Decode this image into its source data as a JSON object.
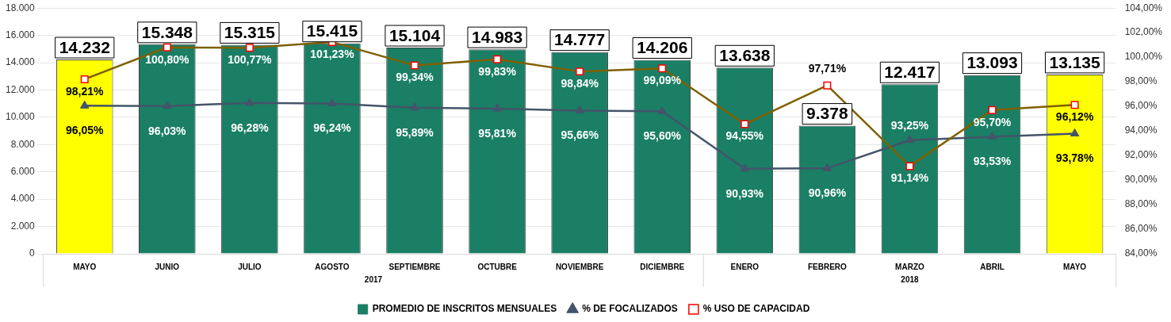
{
  "chart_data": {
    "type": "bar",
    "categories": [
      "MAYO",
      "JUNIO",
      "JULIO",
      "AGOSTO",
      "SEPTIEMBRE",
      "OCTUBRE",
      "NOVIEMBRE",
      "DICIEMBRE",
      "ENERO",
      "FEBRERO",
      "MARZO",
      "ABRIL",
      "MAYO"
    ],
    "series": [
      {
        "name": "PROMEDIO DE INSCRITOS MENSUALES",
        "color": "#1a7f64",
        "value_labels": [
          "14.232",
          "15.348",
          "15.315",
          "15.415",
          "15.104",
          "14.983",
          "14.777",
          "14.206",
          "13.638",
          "9.378",
          "12.417",
          "13.093",
          "13.135"
        ],
        "colors": [
          "#ffff00",
          "#1a7f64",
          "#1a7f64",
          "#1a7f64",
          "#1a7f64",
          "#1a7f64",
          "#1a7f64",
          "#1a7f64",
          "#1a7f64",
          "#1a7f64",
          "#1a7f64",
          "#1a7f64",
          "#ffff00"
        ],
        "values": [
          14232,
          15348,
          15315,
          15415,
          15104,
          14983,
          14777,
          14206,
          13638,
          9378,
          12417,
          13093,
          13135
        ]
      },
      {
        "name": "% DE FOCALIZADOS",
        "type": "line",
        "axis": "y2",
        "marker": "triangle",
        "color": "#44546a",
        "value_labels": [
          "96,05%",
          "96,03%",
          "96,28%",
          "96,24%",
          "95,89%",
          "95,81%",
          "95,66%",
          "95,60%",
          "90,93%",
          "90,96%",
          "93,25%",
          "93,53%",
          "93,78%"
        ],
        "values": [
          96.05,
          96.03,
          96.28,
          96.24,
          95.89,
          95.81,
          95.66,
          95.6,
          90.93,
          90.96,
          93.25,
          93.53,
          93.78
        ]
      },
      {
        "name": "% USO DE CAPACIDAD",
        "type": "line",
        "axis": "y2",
        "marker": "square",
        "color": "#7f6000",
        "value_labels": [
          "98,21%",
          "100,80%",
          "100,77%",
          "101,23%",
          "99,34%",
          "99,83%",
          "98,84%",
          "99,09%",
          "94,55%",
          "97,71%",
          "91,14%",
          "95,70%",
          "96,12%"
        ],
        "values": [
          98.21,
          100.8,
          100.77,
          101.23,
          99.34,
          99.83,
          98.84,
          99.09,
          94.55,
          97.71,
          91.14,
          95.7,
          96.12
        ]
      }
    ],
    "ylim": [
      0,
      18000
    ],
    "yticks": [
      {
        "value": 0,
        "label": "0"
      },
      {
        "value": 2000,
        "label": "2.000"
      },
      {
        "value": 4000,
        "label": "4.000"
      },
      {
        "value": 6000,
        "label": "6.000"
      },
      {
        "value": 8000,
        "label": "8.000"
      },
      {
        "value": 10000,
        "label": "10.000"
      },
      {
        "value": 12000,
        "label": "12.000"
      },
      {
        "value": 14000,
        "label": "14.000"
      },
      {
        "value": 16000,
        "label": "16.000"
      },
      {
        "value": 18000,
        "label": "18.000"
      }
    ],
    "y2lim": [
      84,
      104
    ],
    "y2ticks": [
      {
        "value": 84,
        "label": "84,00%"
      },
      {
        "value": 86,
        "label": "86,00%"
      },
      {
        "value": 88,
        "label": "88,00%"
      },
      {
        "value": 90,
        "label": "90,00%"
      },
      {
        "value": 92,
        "label": "92,00%"
      },
      {
        "value": 94,
        "label": "94,00%"
      },
      {
        "value": 96,
        "label": "96,00%"
      },
      {
        "value": 98,
        "label": "98,00%"
      },
      {
        "value": 100,
        "label": "100,00%"
      },
      {
        "value": 102,
        "label": "102,00%"
      },
      {
        "value": 104,
        "label": "104,00%"
      }
    ],
    "annotations": [
      "2017",
      "2018"
    ],
    "grid": "y",
    "legend": "bottom"
  }
}
